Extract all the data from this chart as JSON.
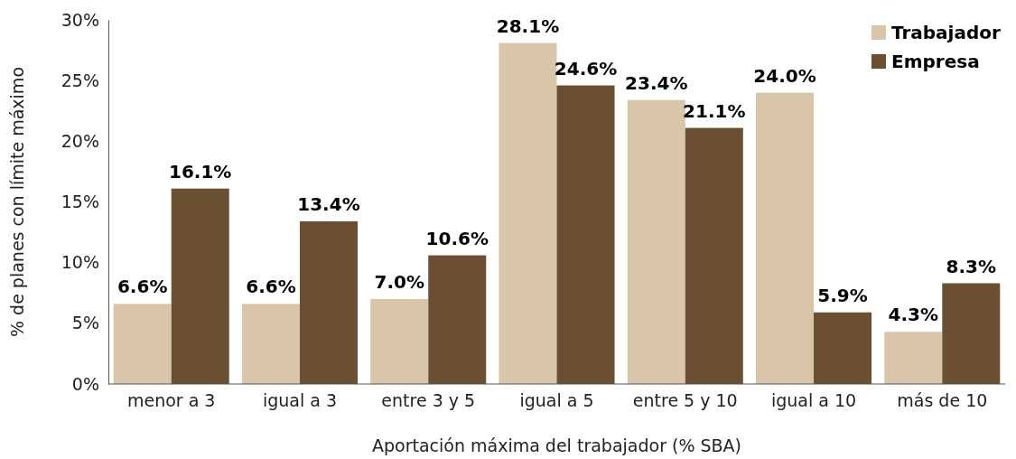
{
  "chart_data": {
    "type": "bar",
    "xlabel": "Aportación máxima del trabajador (% SBA)",
    "ylabel": "% de planes con límite máximo",
    "categories": [
      "menor a 3",
      "igual a 3",
      "entre 3 y 5",
      "igual a 5",
      "entre 5 y 10",
      "igual a 10",
      "más de 10"
    ],
    "series": [
      {
        "name": "Trabajador",
        "color": "#d9c5aa",
        "values": [
          6.6,
          6.6,
          7.0,
          28.1,
          23.4,
          24.0,
          4.3
        ],
        "value_labels": [
          "6.6%",
          "6.6%",
          "7.0%",
          "28.1%",
          "23.4%",
          "24.0%",
          "4.3%"
        ]
      },
      {
        "name": "Empresa",
        "color": "#6a4f32",
        "values": [
          16.1,
          13.4,
          10.6,
          24.6,
          21.1,
          5.9,
          8.3
        ],
        "value_labels": [
          "16.1%",
          "13.4%",
          "10.6%",
          "24.6%",
          "21.1%",
          "5.9%",
          "8.3%"
        ]
      }
    ],
    "ylim": [
      0,
      30
    ],
    "yticks": [
      {
        "value": 0,
        "label": "0%"
      },
      {
        "value": 5,
        "label": "5%"
      },
      {
        "value": 10,
        "label": "10%"
      },
      {
        "value": 15,
        "label": "15%"
      },
      {
        "value": 20,
        "label": "20%"
      },
      {
        "value": 25,
        "label": "25%"
      },
      {
        "value": 30,
        "label": "30%"
      }
    ],
    "grid": false,
    "legend": "top right"
  }
}
